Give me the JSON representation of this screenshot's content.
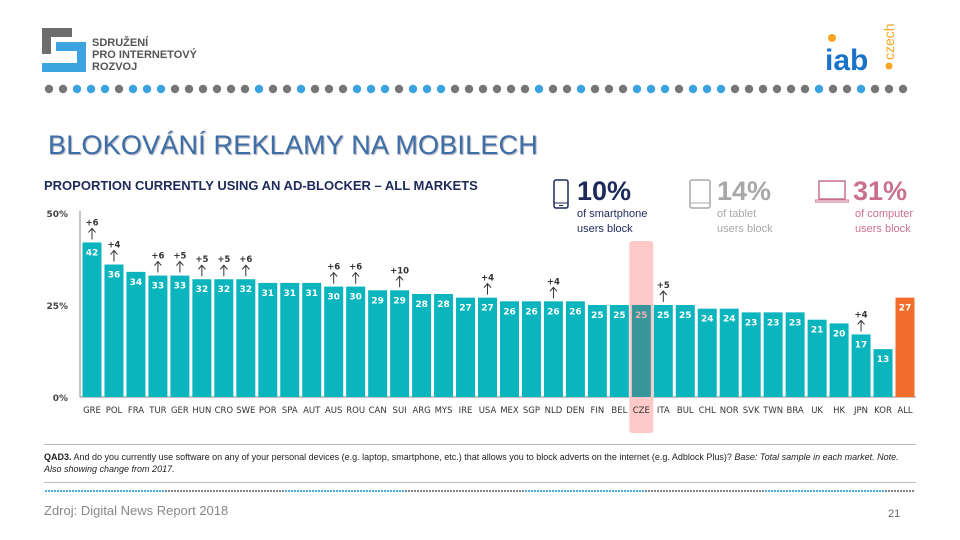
{
  "header": {
    "org_logo_text": [
      "SDRUŽENÍ",
      "PRO INTERNETOVÝ",
      "ROZVOJ"
    ],
    "iab_logo_text": "iab.czech",
    "title": "BLOKOVÁNÍ REKLAMY NA MOBILECH"
  },
  "stats": [
    {
      "value": "10%",
      "label1": "of smartphone",
      "label2": "users block",
      "icon": "smartphone-icon",
      "color": "#1d2a5a"
    },
    {
      "value": "14%",
      "label1": "of tablet",
      "label2": "users block",
      "icon": "tablet-icon",
      "color": "#a8a8a8"
    },
    {
      "value": "31%",
      "label1": "of computer",
      "label2": "users block",
      "icon": "laptop-icon",
      "color": "#c9708e"
    }
  ],
  "chart_data": {
    "type": "bar",
    "title": "PROPORTION CURRENTLY USING AN AD-BLOCKER – ALL MARKETS",
    "categories": [
      "GRE",
      "POL",
      "FRA",
      "TUR",
      "GER",
      "HUN",
      "CRO",
      "SWE",
      "POR",
      "SPA",
      "AUT",
      "AUS",
      "ROU",
      "CAN",
      "SUI",
      "ARG",
      "MYS",
      "IRE",
      "USA",
      "MEX",
      "SGP",
      "NLD",
      "DEN",
      "FIN",
      "BEL",
      "CZE",
      "ITA",
      "BUL",
      "CHL",
      "NOR",
      "SVK",
      "TWN",
      "BRA",
      "UK",
      "HK",
      "JPN",
      "KOR",
      "ALL"
    ],
    "values": [
      42,
      36,
      34,
      33,
      33,
      32,
      32,
      32,
      31,
      31,
      31,
      30,
      30,
      29,
      29,
      28,
      28,
      27,
      27,
      26,
      26,
      26,
      26,
      25,
      25,
      25,
      25,
      25,
      24,
      24,
      23,
      23,
      23,
      21,
      20,
      17,
      13,
      27
    ],
    "changes": [
      "+6",
      "+4",
      null,
      "+6",
      "+5",
      "+5",
      "+5",
      "+6",
      null,
      null,
      null,
      "+6",
      "+6",
      null,
      "+10",
      null,
      null,
      null,
      "+4",
      null,
      null,
      "+4",
      null,
      null,
      null,
      null,
      "+5",
      null,
      null,
      null,
      null,
      null,
      null,
      null,
      null,
      "+4",
      null,
      null
    ],
    "yticks": [
      "0%",
      "25%",
      "50%"
    ],
    "ylim": [
      0,
      50
    ],
    "highlight": "CZE",
    "colors": {
      "bar": "#0bb5bd",
      "total": "#f26d2b",
      "highlight_band": "#ffc9c9",
      "highlight_bar": "#38959a"
    }
  },
  "footer": {
    "note_bold": "QAD3.",
    "note_text": " And do you currently use software on any of your personal devices (e.g. laptop, smartphone, etc.) that allows you to block adverts on the internet (e.g. Adblock Plus)? ",
    "note_italic": "Base: Total sample in each market. Note. Also showing change from 2017.",
    "source": "Zdroj: Digital News Report 2018",
    "page": "21"
  }
}
